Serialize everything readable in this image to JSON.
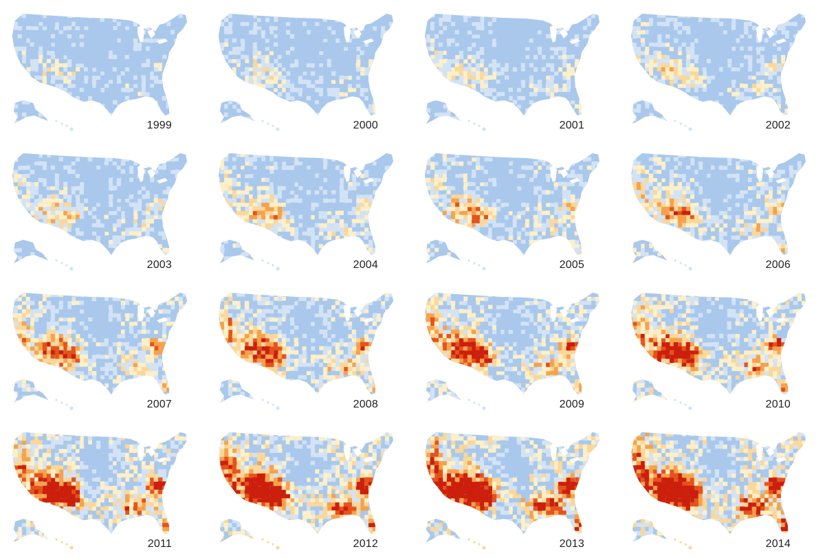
{
  "maps": [
    {
      "year": "1999",
      "level": 0.0
    },
    {
      "year": "2000",
      "level": 0.04
    },
    {
      "year": "2001",
      "level": 0.08
    },
    {
      "year": "2002",
      "level": 0.13
    },
    {
      "year": "2003",
      "level": 0.18
    },
    {
      "year": "2004",
      "level": 0.23
    },
    {
      "year": "2005",
      "level": 0.28
    },
    {
      "year": "2006",
      "level": 0.33
    },
    {
      "year": "2007",
      "level": 0.42
    },
    {
      "year": "2008",
      "level": 0.5
    },
    {
      "year": "2009",
      "level": 0.58
    },
    {
      "year": "2010",
      "level": 0.65
    },
    {
      "year": "2011",
      "level": 0.74
    },
    {
      "year": "2012",
      "level": 0.82
    },
    {
      "year": "2013",
      "level": 0.91
    },
    {
      "year": "2014",
      "level": 1.0
    }
  ],
  "color_scale": [
    "#a9c8ec",
    "#d3e3f5",
    "#fdf0c8",
    "#fbd79a",
    "#f6a24d",
    "#e5531c",
    "#cc1f0c"
  ],
  "background": "#ffffff"
}
